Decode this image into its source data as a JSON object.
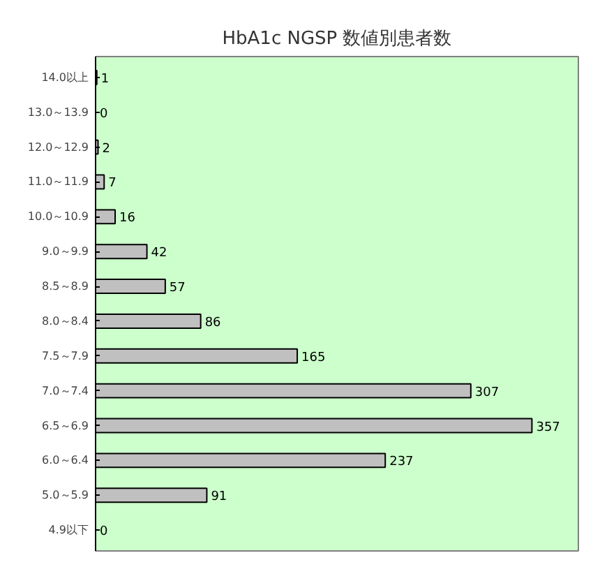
{
  "chart_data": {
    "type": "bar",
    "orientation": "horizontal",
    "title": "HbA1c NGSP 数値別患者数",
    "categories": [
      "14.0以上",
      "13.0～13.9",
      "12.0～12.9",
      "11.0～11.9",
      "10.0～10.9",
      "9.0～9.9",
      "8.5～8.9",
      "8.0～8.4",
      "7.5～7.9",
      "7.0～7.4",
      "6.5～6.9",
      "6.0～6.4",
      "5.0～5.9",
      "4.9以下"
    ],
    "values": [
      1,
      0,
      2,
      7,
      16,
      42,
      57,
      86,
      165,
      307,
      357,
      237,
      91,
      0
    ],
    "color": "#c0c0c0",
    "xlim": [
      0,
      395
    ],
    "data_labels": true,
    "grid": false
  }
}
